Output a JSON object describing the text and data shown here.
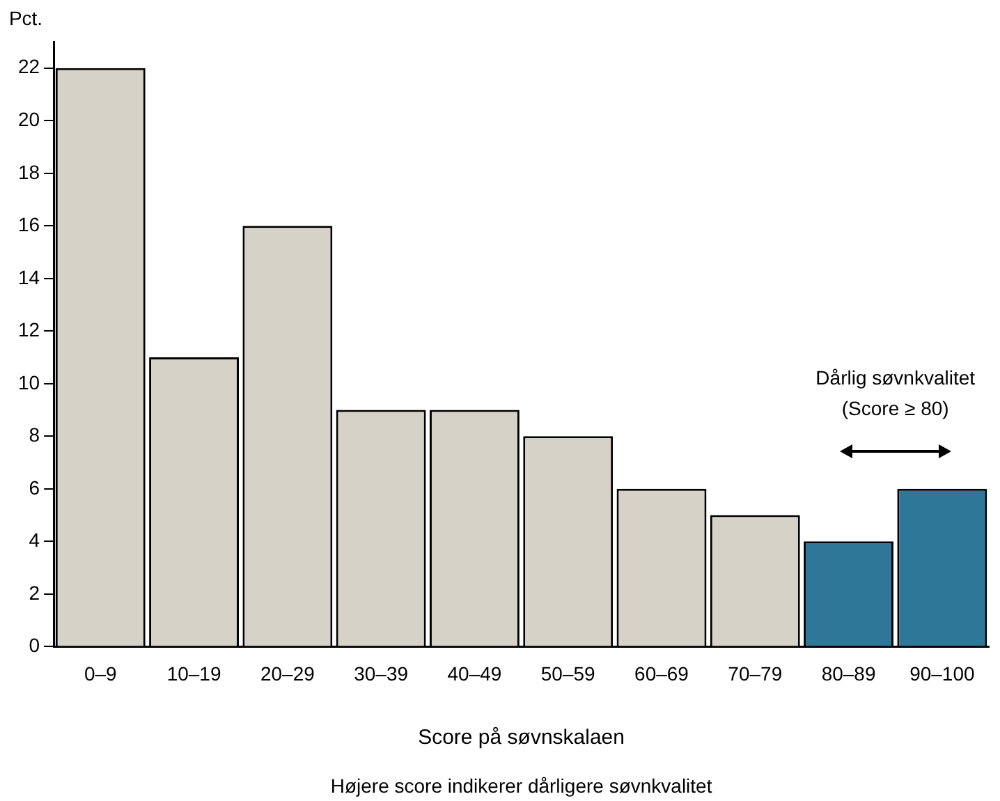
{
  "chart_data": {
    "type": "bar",
    "ylabel": "Pct.",
    "xlabel": "Score på søvnskalaen",
    "categories": [
      "0–9",
      "10–19",
      "20–29",
      "30–39",
      "40–49",
      "50–59",
      "60–69",
      "70–79",
      "80–89",
      "90–100"
    ],
    "values": [
      22,
      11,
      16,
      9,
      9,
      8,
      6,
      5,
      4,
      6
    ],
    "colors": [
      "#d6d2c7",
      "#d6d2c7",
      "#d6d2c7",
      "#d6d2c7",
      "#d6d2c7",
      "#d6d2c7",
      "#d6d2c7",
      "#d6d2c7",
      "#2f7798",
      "#2f7798"
    ],
    "ylim": [
      0,
      23
    ],
    "yticks": [
      0,
      2,
      4,
      6,
      8,
      10,
      12,
      14,
      16,
      18,
      20,
      22
    ],
    "grid": false,
    "legend": false,
    "annotations": [
      "Dårlig søvnkvalitet\n(Score ≥ 80)",
      "Højere score indikerer dårligere søvnkvalitet"
    ]
  }
}
